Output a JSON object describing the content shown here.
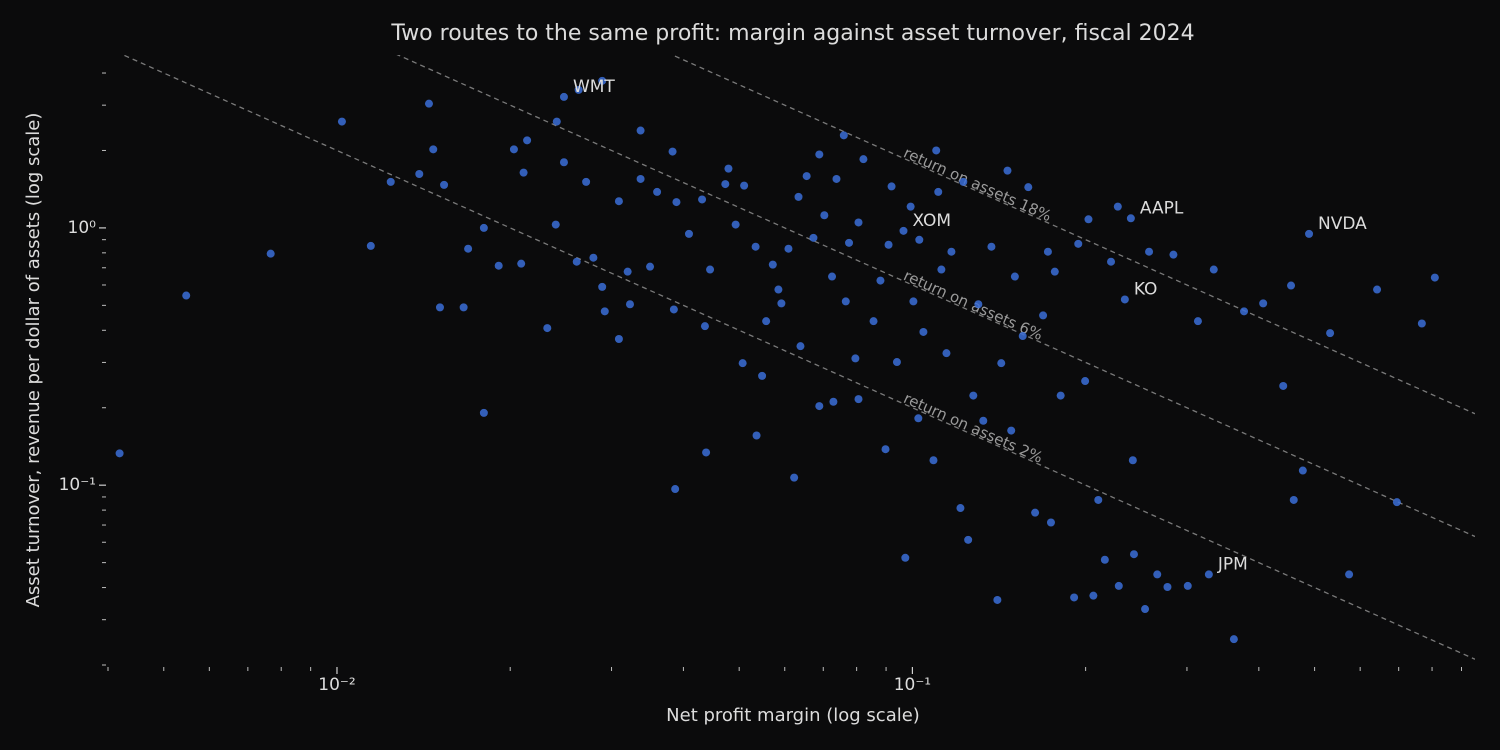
{
  "chart_data": {
    "type": "scatter",
    "title": "Two routes to the same profit: margin against asset turnover, fiscal 2024",
    "x_label": "Net profit margin (log scale)",
    "y_label": "Asset turnover, revenue per dollar of assets (log scale)",
    "log_x": true,
    "log_y": true,
    "color": "#3b6fd8",
    "xlim": [
      0.004,
      0.95
    ],
    "ylim": [
      0.02,
      4.7
    ],
    "xticks": [
      {
        "value": 0.01,
        "label": "10⁻²"
      },
      {
        "value": 0.1,
        "label": "10⁻¹"
      }
    ],
    "yticks": [
      {
        "value": 0.1,
        "label": "10⁻¹"
      },
      {
        "value": 1,
        "label": "10⁰"
      }
    ],
    "xminorticks": [
      0.004,
      0.005,
      0.006,
      0.007,
      0.008,
      0.009,
      0.02,
      0.03,
      0.04,
      0.05,
      0.06,
      0.07,
      0.08,
      0.09,
      0.2,
      0.3,
      0.4,
      0.5,
      0.6,
      0.7,
      0.8,
      0.9
    ],
    "yminorticks": [
      0.02,
      0.03,
      0.04,
      0.05,
      0.06,
      0.07,
      0.08,
      0.09,
      0.2,
      0.3,
      0.4,
      0.5,
      0.6,
      0.7,
      0.8,
      0.9,
      2,
      3,
      4
    ],
    "roa_lines": [
      {
        "value": 0.02,
        "label": "return on assets 2%"
      },
      {
        "value": 0.06,
        "label": "return on assets 6%"
      },
      {
        "value": 0.18,
        "label": "return on assets 18%"
      }
    ],
    "annotations": [
      {
        "text": "WMT",
        "x": 0.0248,
        "y": 3.23
      },
      {
        "text": "XOM",
        "x": 0.0965,
        "y": 0.974
      },
      {
        "text": "KO",
        "x": 0.234,
        "y": 0.527
      },
      {
        "text": "AAPL",
        "x": 0.2397,
        "y": 1.09
      },
      {
        "text": "NVDA",
        "x": 0.489,
        "y": 0.948
      },
      {
        "text": "JPM",
        "x": 0.3275,
        "y": 0.045
      }
    ],
    "x": [
      0.00419,
      0.00547,
      0.00767,
      0.0102,
      0.01145,
      0.0124,
      0.0139,
      0.01445,
      0.0147,
      0.0151,
      0.01535,
      0.0166,
      0.0169,
      0.018,
      0.018,
      0.0191,
      0.0203,
      0.0209,
      0.0211,
      0.0214,
      0.0232,
      0.024,
      0.0241,
      0.0248,
      0.0248,
      0.0263,
      0.0261,
      0.0271,
      0.0279,
      0.0289,
      0.0289,
      0.0292,
      0.0309,
      0.0309,
      0.032,
      0.0323,
      0.0337,
      0.0337,
      0.035,
      0.036,
      0.0383,
      0.0385,
      0.0387,
      0.0389,
      0.0409,
      0.0431,
      0.0436,
      0.0438,
      0.0445,
      0.0473,
      0.0479,
      0.0493,
      0.0507,
      0.051,
      0.0534,
      0.0536,
      0.0548,
      0.0557,
      0.0572,
      0.0585,
      0.0592,
      0.0609,
      0.0623,
      0.0634,
      0.0639,
      0.0655,
      0.0673,
      0.0689,
      0.0689,
      0.0703,
      0.0725,
      0.0729,
      0.0738,
      0.076,
      0.0766,
      0.0776,
      0.0796,
      0.0806,
      0.0806,
      0.0822,
      0.0856,
      0.088,
      0.0898,
      0.0909,
      0.092,
      0.094,
      0.0965,
      0.0972,
      0.0993,
      0.1004,
      0.1024,
      0.1028,
      0.1045,
      0.1088,
      0.11,
      0.1109,
      0.1123,
      0.1146,
      0.1169,
      0.1212,
      0.1226,
      0.125,
      0.1276,
      0.1302,
      0.1328,
      0.1372,
      0.1405,
      0.1427,
      0.1463,
      0.1485,
      0.1507,
      0.1555,
      0.159,
      0.1634,
      0.1687,
      0.172,
      0.1741,
      0.1768,
      0.181,
      0.191,
      0.1942,
      0.1996,
      0.2023,
      0.2063,
      0.2104,
      0.216,
      0.2214,
      0.2275,
      0.2284,
      0.234,
      0.2397,
      0.2416,
      0.2427,
      0.2537,
      0.2578,
      0.2664,
      0.2775,
      0.2842,
      0.301,
      0.3135,
      0.3275,
      0.334,
      0.362,
      0.377,
      0.407,
      0.441,
      0.455,
      0.46,
      0.477,
      0.489,
      0.532,
      0.574,
      0.642,
      0.695,
      0.768,
      0.809
    ],
    "y": [
      0.133,
      0.546,
      0.794,
      2.59,
      0.851,
      1.51,
      1.62,
      3.04,
      2.02,
      0.491,
      1.47,
      0.491,
      0.83,
      1.0,
      0.191,
      0.713,
      2.02,
      0.726,
      1.64,
      2.19,
      0.408,
      1.03,
      2.59,
      3.23,
      1.8,
      3.44,
      0.739,
      1.51,
      0.766,
      3.73,
      0.59,
      0.474,
      0.37,
      1.27,
      0.676,
      0.505,
      2.39,
      1.55,
      0.707,
      1.38,
      1.98,
      0.482,
      0.0966,
      1.26,
      0.948,
      1.29,
      0.415,
      0.134,
      0.689,
      1.48,
      1.7,
      1.03,
      0.298,
      1.46,
      0.845,
      0.156,
      0.266,
      0.434,
      0.72,
      0.576,
      0.509,
      0.83,
      0.107,
      1.32,
      0.347,
      1.59,
      0.915,
      1.93,
      0.203,
      1.12,
      0.647,
      0.211,
      1.55,
      2.29,
      0.518,
      0.875,
      0.311,
      1.05,
      0.216,
      1.85,
      0.434,
      0.624,
      0.138,
      0.86,
      1.45,
      0.301,
      0.974,
      0.0522,
      1.21,
      0.518,
      0.182,
      0.899,
      0.394,
      0.125,
      2.0,
      1.38,
      0.689,
      0.326,
      0.808,
      0.0815,
      1.51,
      0.0613,
      0.223,
      0.505,
      0.178,
      0.845,
      0.0358,
      0.298,
      1.67,
      0.163,
      0.647,
      0.38,
      1.44,
      0.0782,
      0.457,
      0.808,
      0.0716,
      0.676,
      0.223,
      0.0366,
      0.867,
      0.254,
      1.08,
      0.0372,
      0.0876,
      0.0513,
      0.739,
      1.21,
      0.0406,
      0.527,
      1.09,
      0.125,
      0.0539,
      0.033,
      0.808,
      0.045,
      0.0402,
      0.787,
      0.0406,
      0.434,
      0.045,
      0.689,
      0.0252,
      0.474,
      0.509,
      0.243,
      0.597,
      0.0876,
      0.114,
      0.948,
      0.39,
      0.045,
      0.576,
      0.0859,
      0.425,
      0.641
    ]
  }
}
